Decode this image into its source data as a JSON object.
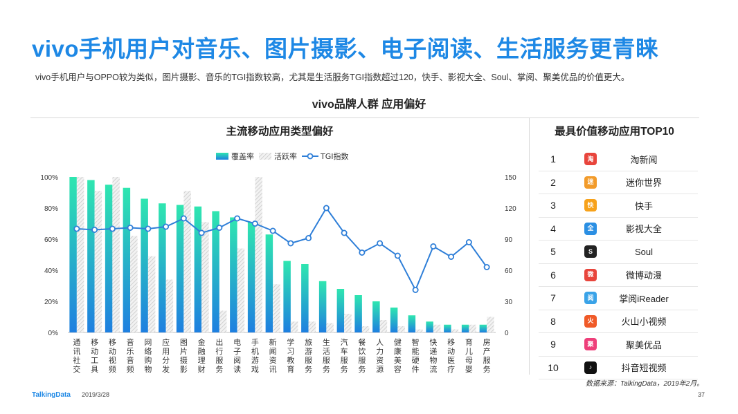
{
  "title": "vivo手机用户对音乐、图片摄影、电子阅读、生活服务更青睐",
  "subtitle": "vivo手机用户与OPPO较为类似，图片摄影、音乐的TGI指数较高，尤其是生活服务TGI指数超过120，快手、影视大全、Soul、掌阅、聚美优品的价值更大。",
  "section_title": "vivo品牌人群  应用偏好",
  "chart_title": "主流移动应用类型偏好",
  "top_title": "最具价值移动应用TOP10",
  "top_apps": [
    {
      "rank": "1",
      "name": "淘新闻",
      "icon": "taoxinwen-icon",
      "color": "#e8453c"
    },
    {
      "rank": "2",
      "name": "迷你世界",
      "icon": "miniworld-icon",
      "color": "#f29b2a"
    },
    {
      "rank": "3",
      "name": "快手",
      "icon": "kuaishou-icon",
      "color": "#f7a21b"
    },
    {
      "rank": "4",
      "name": "影视大全",
      "icon": "yingshidaquan-icon",
      "color": "#2b8fe3"
    },
    {
      "rank": "5",
      "name": "Soul",
      "icon": "soul-icon",
      "color": "#222222"
    },
    {
      "rank": "6",
      "name": "微博动漫",
      "icon": "weibodongman-icon",
      "color": "#e8453c"
    },
    {
      "rank": "7",
      "name": "掌阅iReader",
      "icon": "ireader-icon",
      "color": "#3aa3e8"
    },
    {
      "rank": "8",
      "name": "火山小视频",
      "icon": "huoshan-icon",
      "color": "#f05a28"
    },
    {
      "rank": "9",
      "name": "聚美优品",
      "icon": "jumei-icon",
      "color": "#ee3f7a"
    },
    {
      "rank": "10",
      "name": "抖音短视频",
      "icon": "douyin-icon",
      "color": "#111111"
    }
  ],
  "source": "数据来源：TalkingData，2019年2月。",
  "footer_logo": "TalkingData",
  "footer_date": "2019/3/28",
  "page_number": "37",
  "colors": {
    "accent": "#1e88e5",
    "bar_top": "#2fe6b0",
    "bar_bottom": "#1e7fe0",
    "line": "#2f7fd8",
    "hatch": "#cfcfcf"
  },
  "chart_data": {
    "type": "bar",
    "categories": [
      "通讯社交",
      "移动工具",
      "移动视频",
      "音乐音频",
      "网络购物",
      "应用分发",
      "图片摄影",
      "金融理财",
      "出行服务",
      "电子阅读",
      "手机游戏",
      "新闻资讯",
      "学习教育",
      "旅游服务",
      "生活服务",
      "汽车服务",
      "餐饮服务",
      "人力资源",
      "健康美容",
      "智能硬件",
      "快递物流",
      "移动医疗",
      "育儿母婴",
      "房产服务"
    ],
    "series": [
      {
        "name": "覆盖率",
        "type": "bar",
        "axis": "left",
        "values": [
          100,
          98,
          95,
          93,
          86,
          83,
          82,
          81,
          78,
          74,
          71,
          63,
          46,
          44,
          33,
          28,
          24,
          20,
          16,
          11,
          7,
          5,
          5,
          5
        ]
      },
      {
        "name": "活跃率",
        "type": "bar",
        "axis": "left",
        "values": [
          100,
          91,
          100,
          62,
          49,
          34,
          91,
          71,
          14,
          54,
          100,
          31,
          7,
          7,
          6,
          12,
          4,
          8,
          4,
          2,
          5,
          2,
          5,
          10
        ]
      },
      {
        "name": "TGI指数",
        "type": "line",
        "axis": "right",
        "values": [
          100,
          99,
          100,
          101,
          100,
          102,
          110,
          96,
          101,
          110,
          105,
          98,
          86,
          91,
          120,
          96,
          77,
          86,
          74,
          41,
          83,
          73,
          87,
          63
        ]
      }
    ],
    "y_left": {
      "min": 0,
      "max": 100,
      "ticks": [
        "0%",
        "20%",
        "40%",
        "60%",
        "80%",
        "100%"
      ]
    },
    "y_right": {
      "min": 0,
      "max": 150,
      "ticks": [
        "0",
        "30",
        "60",
        "90",
        "120",
        "150"
      ]
    },
    "legend_position": "top-center",
    "grid": false
  }
}
